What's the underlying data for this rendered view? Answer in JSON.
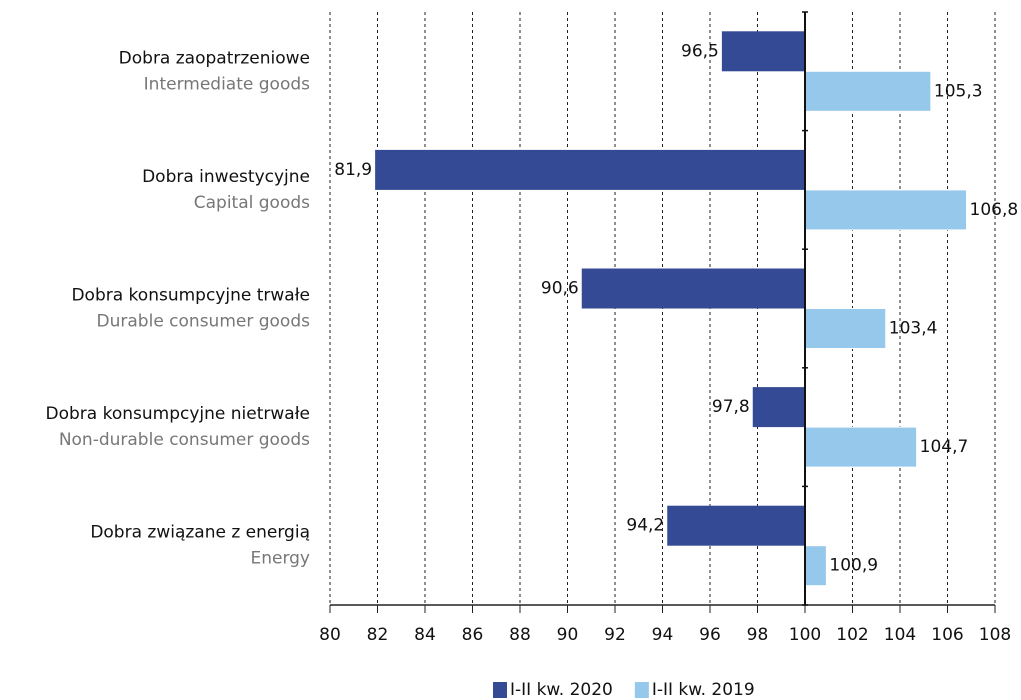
{
  "chart_data": {
    "type": "hbar",
    "categories": [
      "Dobra zaopatrzeniowe",
      "Dobra inwestycyjne",
      "Dobra konsumpcyjne trwałe",
      "Dobra konsumpcyjne nietrwałe",
      "Dobra związane z energią"
    ],
    "category_subtitles": [
      "Intermediate goods",
      "Capital goods",
      "Durable consumer goods",
      "Non-durable consumer goods",
      "Energy"
    ],
    "series": [
      {
        "name": "I-II kw. 2020",
        "color": "#354a94",
        "values": [
          96.5,
          81.9,
          90.6,
          97.8,
          94.2
        ],
        "value_labels": [
          "96,5",
          "81,9",
          "90,6",
          "97,8",
          "94,2"
        ]
      },
      {
        "name": "I-II kw. 2019",
        "color": "#95c8ea",
        "values": [
          105.3,
          106.8,
          103.4,
          104.7,
          100.9
        ],
        "value_labels": [
          "105,3",
          "106,8",
          "103,4",
          "104,7",
          "100,9"
        ]
      }
    ],
    "xlim": [
      80,
      108
    ],
    "xticks": [
      80,
      82,
      84,
      86,
      88,
      90,
      92,
      94,
      96,
      98,
      100,
      102,
      104,
      106,
      108
    ],
    "baseline": 100,
    "grid": true,
    "legend": "bottom"
  }
}
